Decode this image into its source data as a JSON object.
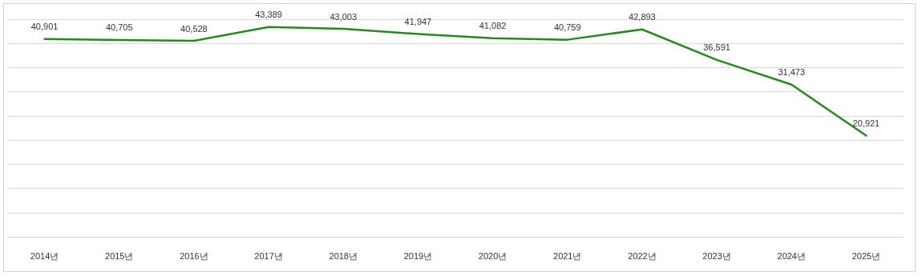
{
  "chart_data": {
    "type": "line",
    "categories": [
      "2014년",
      "2015년",
      "2016년",
      "2017년",
      "2018년",
      "2019년",
      "2020년",
      "2021년",
      "2022년",
      "2023년",
      "2024년",
      "2025년"
    ],
    "series": [
      {
        "color": "#238a1c",
        "values": [
          40901,
          40705,
          40528,
          43389,
          43003,
          41947,
          41082,
          40759,
          42893,
          36591,
          31473,
          20921
        ],
        "value_labels": [
          "40,901",
          "40,705",
          "40,528",
          "43,389",
          "43,003",
          "41,947",
          "41,082",
          "40,759",
          "42,893",
          "36,591",
          "31,473",
          "20,921"
        ]
      }
    ],
    "tick_labels": "x",
    "grid": "y",
    "marker": "none",
    "line_style": "solid"
  }
}
